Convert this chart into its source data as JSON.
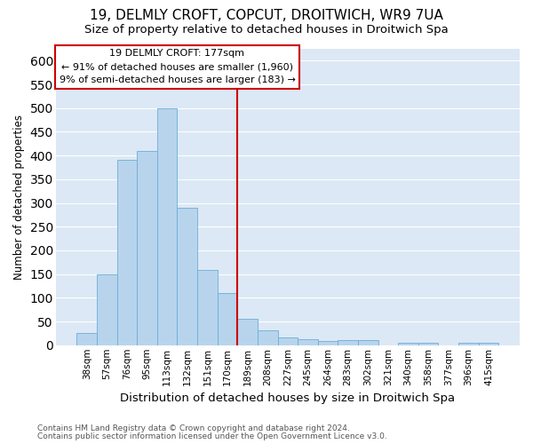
{
  "title": "19, DELMLY CROFT, COPCUT, DROITWICH, WR9 7UA",
  "subtitle": "Size of property relative to detached houses in Droitwich Spa",
  "xlabel": "Distribution of detached houses by size in Droitwich Spa",
  "ylabel": "Number of detached properties",
  "footnote1": "Contains HM Land Registry data © Crown copyright and database right 2024.",
  "footnote2": "Contains public sector information licensed under the Open Government Licence v3.0.",
  "bin_labels": [
    "38sqm",
    "57sqm",
    "76sqm",
    "95sqm",
    "113sqm",
    "132sqm",
    "151sqm",
    "170sqm",
    "189sqm",
    "208sqm",
    "227sqm",
    "245sqm",
    "264sqm",
    "283sqm",
    "302sqm",
    "321sqm",
    "340sqm",
    "358sqm",
    "377sqm",
    "396sqm",
    "415sqm"
  ],
  "bar_values": [
    25,
    150,
    390,
    410,
    500,
    290,
    158,
    110,
    55,
    32,
    17,
    12,
    8,
    10,
    10,
    0,
    5,
    6,
    0,
    6,
    5
  ],
  "bar_color": "#b8d4ed",
  "bar_edge_color": "#6baed6",
  "vline_index": 7,
  "vline_color": "#cc0000",
  "annotation_title": "19 DELMLY CROFT: 177sqm",
  "annotation_line1": "← 91% of detached houses are smaller (1,960)",
  "annotation_line2": "9% of semi-detached houses are larger (183) →",
  "annotation_box_edgecolor": "#cc0000",
  "ylim": [
    0,
    625
  ],
  "yticks": [
    0,
    50,
    100,
    150,
    200,
    250,
    300,
    350,
    400,
    450,
    500,
    550,
    600
  ],
  "fig_bg_color": "#ffffff",
  "axes_bg_color": "#dce8f5",
  "grid_color": "#ffffff",
  "title_fontsize": 11,
  "subtitle_fontsize": 9.5,
  "xlabel_fontsize": 9.5,
  "ylabel_fontsize": 8.5,
  "tick_fontsize": 7.5,
  "annot_fontsize": 8,
  "footnote_fontsize": 6.5
}
